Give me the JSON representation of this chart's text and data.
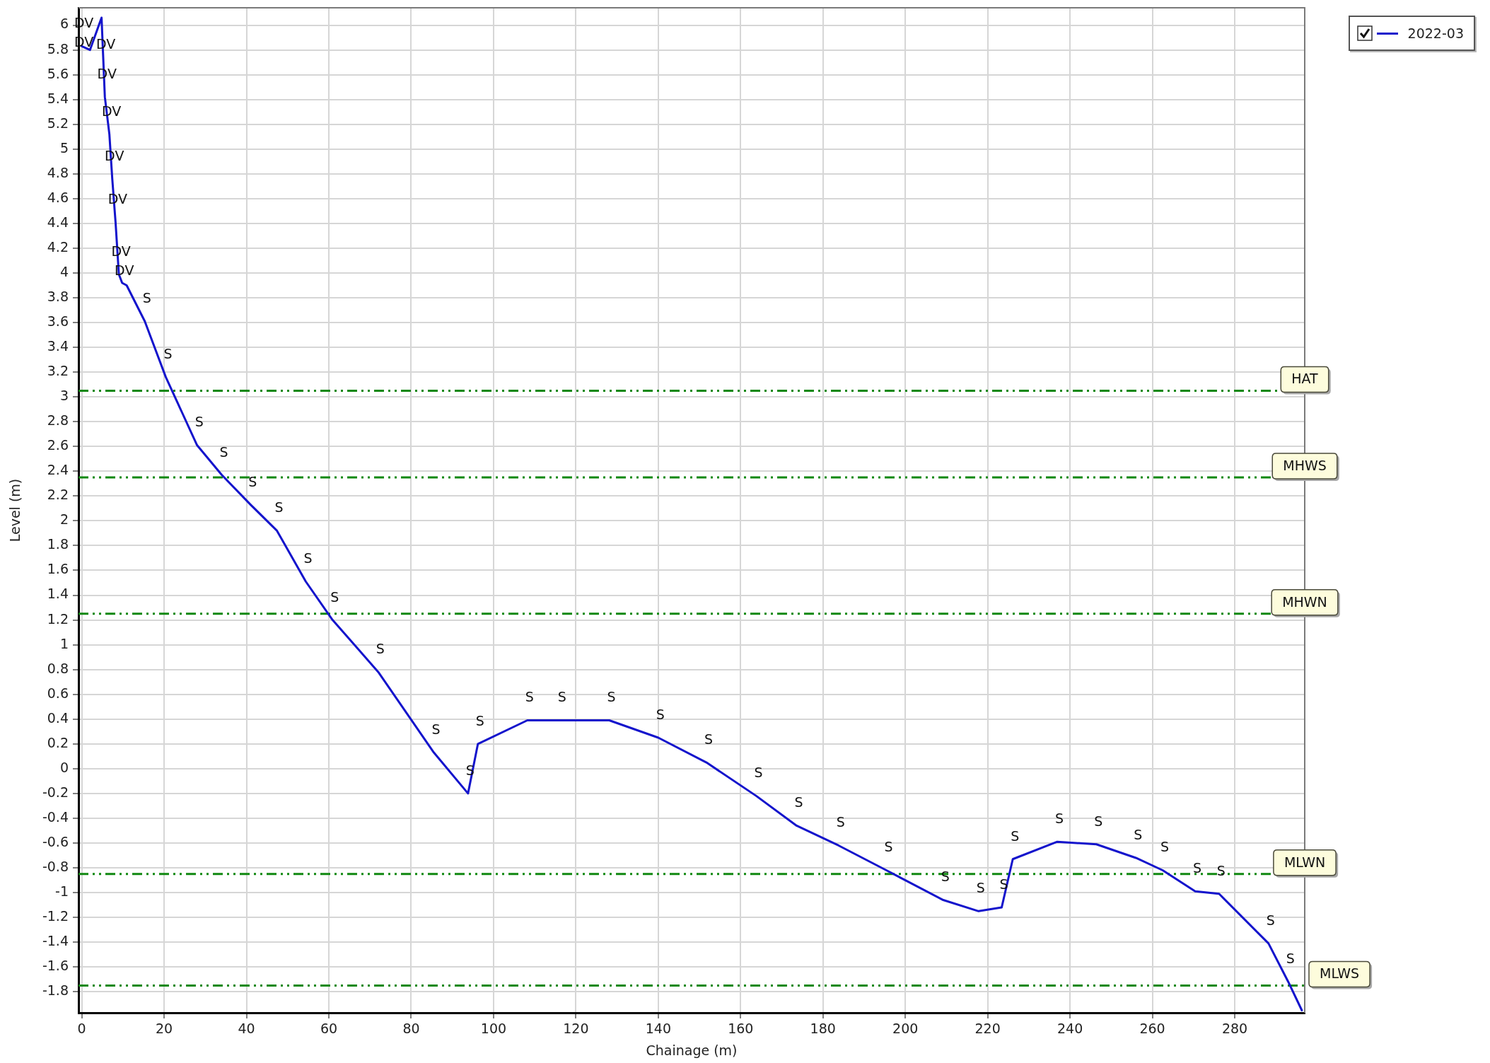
{
  "chart_data": {
    "type": "line",
    "xlabel": "Chainage (m)",
    "ylabel": "Level (m)",
    "x": [
      0.0,
      2.0,
      4.8,
      5.3,
      5.6,
      6.7,
      7.4,
      8.2,
      9.0,
      9.8,
      10.9,
      15.3,
      20.4,
      28.0,
      34.0,
      41.0,
      47.4,
      54.4,
      60.9,
      72.0,
      85.5,
      93.8,
      96.2,
      108.2,
      116.1,
      128.1,
      140.0,
      151.7,
      163.8,
      173.6,
      183.8,
      195.4,
      209.2,
      217.8,
      223.4,
      226.1,
      236.9,
      246.4,
      256.0,
      262.5,
      270.4,
      276.2,
      288.2,
      293.0,
      296.3
    ],
    "series": [
      {
        "name": "2022-03",
        "color": "#1414cc",
        "values": [
          5.83,
          5.8,
          6.06,
          5.66,
          5.42,
          5.12,
          4.76,
          4.41,
          3.99,
          3.92,
          3.9,
          3.61,
          3.16,
          2.61,
          2.37,
          2.13,
          1.92,
          1.51,
          1.2,
          0.78,
          0.13,
          -0.2,
          0.2,
          0.39,
          0.39,
          0.39,
          0.25,
          0.05,
          -0.22,
          -0.46,
          -0.62,
          -0.82,
          -1.06,
          -1.15,
          -1.12,
          -0.73,
          -0.59,
          -0.61,
          -0.72,
          -0.82,
          -0.99,
          -1.01,
          -1.41,
          -1.72,
          -1.95
        ]
      }
    ],
    "xlim": [
      -0.8,
      297
    ],
    "ylim": [
      -1.97,
      6.14
    ],
    "xticks": [
      0,
      20,
      40,
      60,
      80,
      100,
      120,
      140,
      160,
      180,
      200,
      220,
      240,
      260,
      280
    ],
    "yticks": [
      -1.8,
      -1.6,
      -1.4,
      -1.2,
      -1,
      -0.8,
      -0.6,
      -0.4,
      -0.2,
      0,
      0.2,
      0.4,
      0.6,
      0.8,
      1,
      1.2,
      1.4,
      1.6,
      1.8,
      2,
      2.2,
      2.4,
      2.6,
      2.8,
      3,
      3.2,
      3.4,
      3.6,
      3.8,
      4,
      4.2,
      4.4,
      4.6,
      4.8,
      5,
      5.2,
      5.4,
      5.6,
      5.8,
      6
    ],
    "grid": true,
    "legend": "top right",
    "line_style": "solid",
    "ref_lines": [
      {
        "axis": "y",
        "value": 3.05,
        "label": "HAT",
        "color": "#108810",
        "line_style": "dashed"
      },
      {
        "axis": "y",
        "value": 2.35,
        "label": "MHWS",
        "color": "#108810",
        "line_style": "dashed"
      },
      {
        "axis": "y",
        "value": 1.25,
        "label": "MHWN",
        "color": "#108810",
        "line_style": "dashed"
      },
      {
        "axis": "y",
        "value": -0.85,
        "label": "MLWN",
        "color": "#108810",
        "line_style": "dashed"
      },
      {
        "axis": "y",
        "value": -1.75,
        "label": "MLWS",
        "color": "#108810",
        "line_style": "dashed"
      }
    ],
    "annotations": [
      {
        "text": "DV",
        "x": 0.0,
        "y": 5.83
      },
      {
        "text": "DV",
        "x": 0.0,
        "y": 5.83
      },
      {
        "text": "DV",
        "x": 5.3,
        "y": 5.66
      },
      {
        "text": "DV",
        "x": 5.6,
        "y": 5.42
      },
      {
        "text": "DV",
        "x": 6.7,
        "y": 5.12
      },
      {
        "text": "DV",
        "x": 7.4,
        "y": 4.76
      },
      {
        "text": "DV",
        "x": 8.2,
        "y": 4.41
      },
      {
        "text": "DV",
        "x": 9.0,
        "y": 3.99
      },
      {
        "text": "DV",
        "x": 9.8,
        "y": 3.92
      },
      {
        "text": "S",
        "x": 15.3,
        "y": 3.61
      },
      {
        "text": "S",
        "x": 20.4,
        "y": 3.16
      },
      {
        "text": "S",
        "x": 28.0,
        "y": 2.61
      },
      {
        "text": "S",
        "x": 34.0,
        "y": 2.37
      },
      {
        "text": "S",
        "x": 41.0,
        "y": 2.13
      },
      {
        "text": "S",
        "x": 47.4,
        "y": 1.92
      },
      {
        "text": "S",
        "x": 54.4,
        "y": 1.51
      },
      {
        "text": "S",
        "x": 60.9,
        "y": 1.2
      },
      {
        "text": "S",
        "x": 72.0,
        "y": 0.78
      },
      {
        "text": "S",
        "x": 85.5,
        "y": 0.13
      },
      {
        "text": "S",
        "x": 93.8,
        "y": -0.2
      },
      {
        "text": "S",
        "x": 96.2,
        "y": 0.2
      },
      {
        "text": "S",
        "x": 108.2,
        "y": 0.39
      },
      {
        "text": "S",
        "x": 116.1,
        "y": 0.39
      },
      {
        "text": "S",
        "x": 128.1,
        "y": 0.39
      },
      {
        "text": "S",
        "x": 140.0,
        "y": 0.25
      },
      {
        "text": "S",
        "x": 151.7,
        "y": 0.05
      },
      {
        "text": "S",
        "x": 163.8,
        "y": -0.22
      },
      {
        "text": "S",
        "x": 173.6,
        "y": -0.46
      },
      {
        "text": "S",
        "x": 183.8,
        "y": -0.62
      },
      {
        "text": "S",
        "x": 195.4,
        "y": -0.82
      },
      {
        "text": "S",
        "x": 209.2,
        "y": -1.06
      },
      {
        "text": "S",
        "x": 217.8,
        "y": -1.15
      },
      {
        "text": "S",
        "x": 223.4,
        "y": -1.12
      },
      {
        "text": "S",
        "x": 226.1,
        "y": -0.73
      },
      {
        "text": "S",
        "x": 236.9,
        "y": -0.59
      },
      {
        "text": "S",
        "x": 246.4,
        "y": -0.61
      },
      {
        "text": "S",
        "x": 256.0,
        "y": -0.72
      },
      {
        "text": "S",
        "x": 262.5,
        "y": -0.82
      },
      {
        "text": "S",
        "x": 270.4,
        "y": -0.99
      },
      {
        "text": "S",
        "x": 276.2,
        "y": -1.01
      },
      {
        "text": "S",
        "x": 288.2,
        "y": -1.41
      },
      {
        "text": "S",
        "x": 293.0,
        "y": -1.72
      }
    ]
  }
}
